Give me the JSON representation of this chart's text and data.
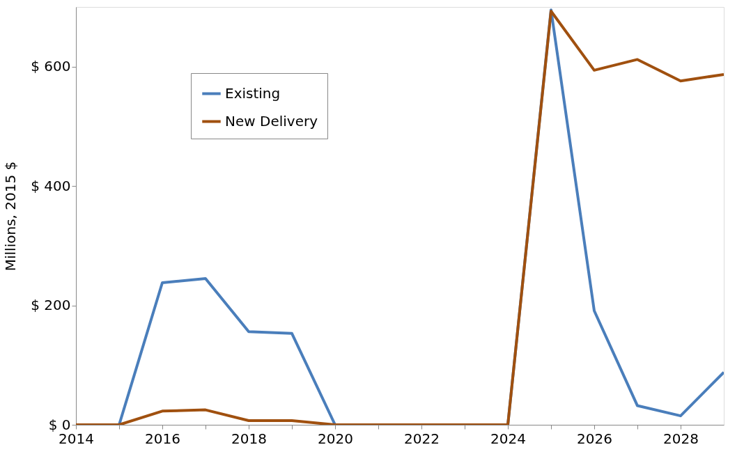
{
  "chart_data": {
    "type": "line",
    "ylabel": "Millions, 2015 $",
    "x": [
      2014,
      2015,
      2016,
      2017,
      2018,
      2019,
      2020,
      2021,
      2022,
      2023,
      2024,
      2025,
      2026,
      2027,
      2028,
      2029
    ],
    "series": [
      {
        "name": "Existing",
        "color": "#4a7ebb",
        "values": [
          0,
          0,
          238,
          245,
          156,
          153,
          0,
          0,
          0,
          0,
          0,
          695,
          191,
          32,
          15,
          88
        ]
      },
      {
        "name": "New Delivery",
        "color": "#a0500f",
        "values": [
          0,
          0,
          23,
          25,
          7,
          7,
          0,
          0,
          0,
          0,
          0,
          693,
          594,
          612,
          576,
          587
        ]
      }
    ],
    "xlim": [
      2014,
      2029
    ],
    "xticks": [
      2014,
      {
        "value": 2015,
        "label": null
      },
      2016,
      {
        "value": 2017,
        "label": null
      },
      2018,
      {
        "value": 2019,
        "label": null
      },
      2020,
      {
        "value": 2021,
        "label": null
      },
      2022,
      {
        "value": 2023,
        "label": null
      },
      2024,
      {
        "value": 2025,
        "label": null
      },
      2026,
      {
        "value": 2027,
        "label": null
      },
      2028
    ],
    "ylim": [
      0,
      700
    ],
    "yticks": [
      {
        "value": 0,
        "label": "$ 0"
      },
      {
        "value": 200,
        "label": "$ 200"
      },
      {
        "value": 400,
        "label": "$ 400"
      },
      {
        "value": 600,
        "label": "$ 600"
      }
    ],
    "grid": false,
    "legend": "top left",
    "marker": "none",
    "line_style": "solid"
  }
}
